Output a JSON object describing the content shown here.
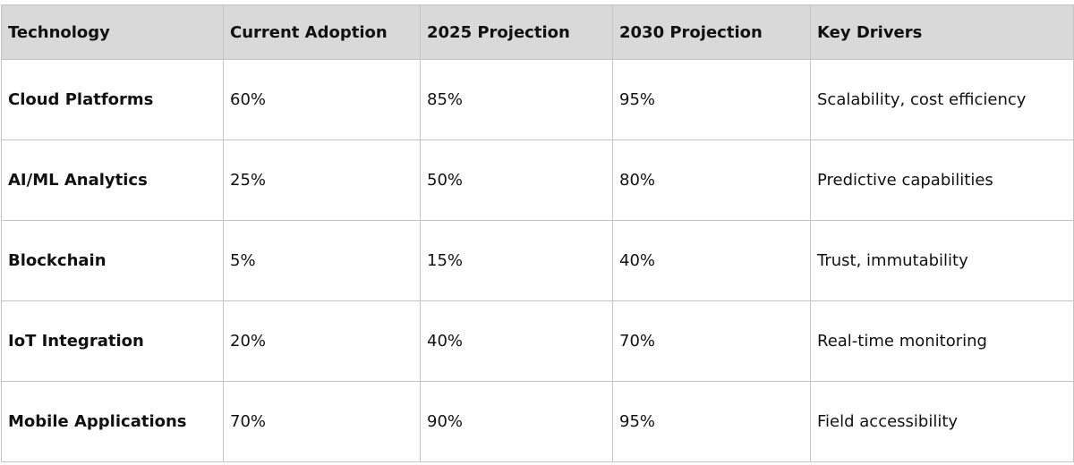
{
  "table": {
    "headers": [
      "Technology",
      "Current Adoption",
      "2025 Projection",
      "2030 Projection",
      "Key Drivers"
    ],
    "rows": [
      [
        "Cloud Platforms",
        "60%",
        "85%",
        "95%",
        "Scalability, cost efficiency"
      ],
      [
        "AI/ML Analytics",
        "25%",
        "50%",
        "80%",
        "Predictive capabilities"
      ],
      [
        "Blockchain",
        "5%",
        "15%",
        "40%",
        "Trust, immutability"
      ],
      [
        "IoT Integration",
        "20%",
        "40%",
        "70%",
        "Real-time monitoring"
      ],
      [
        "Mobile Applications",
        "70%",
        "90%",
        "95%",
        "Field accessibility"
      ]
    ]
  }
}
